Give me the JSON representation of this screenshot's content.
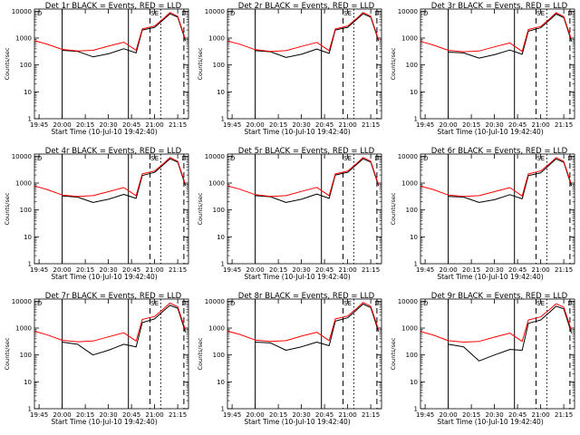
{
  "colors": {
    "events": "#000000",
    "lld": "#ff0000",
    "axes": "#000000",
    "background": "#ffffff"
  },
  "common": {
    "xlabel": "Start Time (10-Jul-10 19:42:40)",
    "ylabel": "Counts/sec",
    "xticks": [
      "19:45",
      "20:00",
      "20:15",
      "20:30",
      "20:45",
      "21:00",
      "21:15"
    ],
    "yticks": [
      "1",
      "10",
      "100",
      "1000",
      "10000"
    ],
    "flags": [
      "D",
      "SE",
      "D"
    ]
  },
  "chart_data": [
    {
      "type": "line",
      "title": "Det 1r BLACK = Events, RED = LLD",
      "xlabel": "Start Time (10-Jul-10 19:42:40)",
      "ylabel": "Counts/sec",
      "yscale": "log",
      "ylim": [
        1,
        12000
      ],
      "xlim": [
        "19:42",
        "21:22"
      ],
      "x": [
        "19:42",
        "19:50",
        "20:00",
        "20:10",
        "20:20",
        "20:30",
        "20:40",
        "20:48",
        "20:52",
        "21:00",
        "21:06",
        "21:10",
        "21:15",
        "21:20"
      ],
      "series": [
        {
          "name": "Events",
          "color": "#000000",
          "values": [
            null,
            null,
            350,
            320,
            200,
            260,
            400,
            280,
            2000,
            2500,
            5000,
            8000,
            6000,
            800
          ]
        },
        {
          "name": "LLD",
          "color": "#ff0000",
          "values": [
            800,
            600,
            380,
            330,
            350,
            500,
            700,
            350,
            2200,
            2800,
            5500,
            9000,
            6500,
            900
          ]
        }
      ],
      "vlines": [
        {
          "x": "20:00",
          "style": "solid"
        },
        {
          "x": "20:43",
          "style": "solid"
        },
        {
          "x": "20:57",
          "style": "dashed"
        },
        {
          "x": "21:04",
          "style": "dotted"
        },
        {
          "x": "21:19",
          "style": "dashed"
        }
      ]
    },
    {
      "type": "line",
      "title": "Det 2r BLACK = Events, RED = LLD",
      "xlabel": "Start Time (10-Jul-10 19:42:40)",
      "ylabel": "Counts/sec",
      "yscale": "log",
      "ylim": [
        1,
        12000
      ],
      "xlim": [
        "19:42",
        "21:22"
      ],
      "x": [
        "19:42",
        "19:50",
        "20:00",
        "20:10",
        "20:20",
        "20:30",
        "20:40",
        "20:48",
        "20:52",
        "21:00",
        "21:06",
        "21:10",
        "21:15",
        "21:20"
      ],
      "series": [
        {
          "name": "Events",
          "color": "#000000",
          "values": [
            null,
            null,
            340,
            310,
            190,
            250,
            390,
            270,
            2000,
            2500,
            5000,
            8000,
            6000,
            800
          ]
        },
        {
          "name": "LLD",
          "color": "#ff0000",
          "values": [
            780,
            590,
            370,
            320,
            340,
            490,
            690,
            340,
            2200,
            2800,
            5500,
            9000,
            6500,
            900
          ]
        }
      ],
      "vlines": [
        {
          "x": "20:00",
          "style": "solid"
        },
        {
          "x": "20:43",
          "style": "solid"
        },
        {
          "x": "20:57",
          "style": "dashed"
        },
        {
          "x": "21:04",
          "style": "dotted"
        },
        {
          "x": "21:19",
          "style": "dashed"
        }
      ]
    },
    {
      "type": "line",
      "title": "Det 3r BLACK = Events, RED = LLD",
      "xlabel": "Start Time (10-Jul-10 19:42:40)",
      "ylabel": "Counts/sec",
      "yscale": "log",
      "ylim": [
        1,
        12000
      ],
      "xlim": [
        "19:42",
        "21:22"
      ],
      "x": [
        "19:42",
        "19:50",
        "20:00",
        "20:10",
        "20:20",
        "20:30",
        "20:40",
        "20:48",
        "20:52",
        "21:00",
        "21:06",
        "21:10",
        "21:15",
        "21:20"
      ],
      "series": [
        {
          "name": "Events",
          "color": "#000000",
          "values": [
            null,
            null,
            300,
            280,
            180,
            240,
            360,
            250,
            1800,
            2400,
            4800,
            7800,
            5800,
            750
          ]
        },
        {
          "name": "LLD",
          "color": "#ff0000",
          "values": [
            750,
            560,
            350,
            310,
            330,
            470,
            660,
            320,
            2100,
            2700,
            5300,
            8800,
            6300,
            880
          ]
        }
      ],
      "vlines": [
        {
          "x": "20:00",
          "style": "solid"
        },
        {
          "x": "20:43",
          "style": "solid"
        },
        {
          "x": "20:57",
          "style": "dashed"
        },
        {
          "x": "21:04",
          "style": "dotted"
        },
        {
          "x": "21:19",
          "style": "dashed"
        }
      ]
    },
    {
      "type": "line",
      "title": "Det 4r BLACK = Events, RED = LLD",
      "xlabel": "Start Time (10-Jul-10 19:42:40)",
      "ylabel": "Counts/sec",
      "yscale": "log",
      "ylim": [
        1,
        12000
      ],
      "xlim": [
        "19:42",
        "21:22"
      ],
      "x": [
        "19:42",
        "19:50",
        "20:00",
        "20:10",
        "20:20",
        "20:30",
        "20:40",
        "20:48",
        "20:52",
        "21:00",
        "21:06",
        "21:10",
        "21:15",
        "21:20"
      ],
      "series": [
        {
          "name": "Events",
          "color": "#000000",
          "values": [
            null,
            null,
            330,
            300,
            190,
            250,
            380,
            270,
            1900,
            2500,
            5000,
            8000,
            6000,
            800
          ]
        },
        {
          "name": "LLD",
          "color": "#ff0000",
          "values": [
            780,
            580,
            360,
            320,
            340,
            480,
            680,
            340,
            2200,
            2800,
            5500,
            9000,
            6500,
            900
          ]
        }
      ],
      "vlines": [
        {
          "x": "20:00",
          "style": "solid"
        },
        {
          "x": "20:43",
          "style": "solid"
        },
        {
          "x": "20:57",
          "style": "dashed"
        },
        {
          "x": "21:04",
          "style": "dotted"
        },
        {
          "x": "21:19",
          "style": "dashed"
        }
      ]
    },
    {
      "type": "line",
      "title": "Det 5r BLACK = Events, RED = LLD",
      "xlabel": "Start Time (10-Jul-10 19:42:40)",
      "ylabel": "Counts/sec",
      "yscale": "log",
      "ylim": [
        1,
        12000
      ],
      "xlim": [
        "19:42",
        "21:22"
      ],
      "x": [
        "19:42",
        "19:50",
        "20:00",
        "20:10",
        "20:20",
        "20:30",
        "20:40",
        "20:48",
        "20:52",
        "21:00",
        "21:06",
        "21:10",
        "21:15",
        "21:20"
      ],
      "series": [
        {
          "name": "Events",
          "color": "#000000",
          "values": [
            null,
            null,
            340,
            310,
            190,
            250,
            390,
            270,
            2000,
            2500,
            5000,
            8000,
            6000,
            800
          ]
        },
        {
          "name": "LLD",
          "color": "#ff0000",
          "values": [
            790,
            590,
            370,
            320,
            340,
            490,
            690,
            340,
            2200,
            2800,
            5500,
            9000,
            6500,
            900
          ]
        }
      ],
      "vlines": [
        {
          "x": "20:00",
          "style": "solid"
        },
        {
          "x": "20:43",
          "style": "solid"
        },
        {
          "x": "20:57",
          "style": "dashed"
        },
        {
          "x": "21:04",
          "style": "dotted"
        },
        {
          "x": "21:19",
          "style": "dashed"
        }
      ]
    },
    {
      "type": "line",
      "title": "Det 6r BLACK = Events, RED = LLD",
      "xlabel": "Start Time (10-Jul-10 19:42:40)",
      "ylabel": "Counts/sec",
      "yscale": "log",
      "ylim": [
        1,
        12000
      ],
      "xlim": [
        "19:42",
        "21:22"
      ],
      "x": [
        "19:42",
        "19:50",
        "20:00",
        "20:10",
        "20:20",
        "20:30",
        "20:40",
        "20:48",
        "20:52",
        "21:00",
        "21:06",
        "21:10",
        "21:15",
        "21:20"
      ],
      "series": [
        {
          "name": "Events",
          "color": "#000000",
          "values": [
            null,
            null,
            320,
            300,
            190,
            240,
            370,
            260,
            1900,
            2400,
            4900,
            7900,
            5900,
            780
          ]
        },
        {
          "name": "LLD",
          "color": "#ff0000",
          "values": [
            770,
            580,
            360,
            320,
            340,
            480,
            680,
            330,
            2200,
            2800,
            5400,
            8900,
            6400,
            890
          ]
        }
      ],
      "vlines": [
        {
          "x": "20:00",
          "style": "solid"
        },
        {
          "x": "20:43",
          "style": "solid"
        },
        {
          "x": "20:57",
          "style": "dashed"
        },
        {
          "x": "21:04",
          "style": "dotted"
        },
        {
          "x": "21:19",
          "style": "dashed"
        }
      ]
    },
    {
      "type": "line",
      "title": "Det 7r BLACK = Events, RED = LLD",
      "xlabel": "Start Time (10-Jul-10 19:42:40)",
      "ylabel": "Counts/sec",
      "yscale": "log",
      "ylim": [
        1,
        12000
      ],
      "xlim": [
        "19:42",
        "21:22"
      ],
      "x": [
        "19:42",
        "19:50",
        "20:00",
        "20:10",
        "20:20",
        "20:30",
        "20:40",
        "20:48",
        "20:52",
        "21:00",
        "21:06",
        "21:10",
        "21:15",
        "21:20"
      ],
      "series": [
        {
          "name": "Events",
          "color": "#000000",
          "values": [
            null,
            null,
            300,
            250,
            100,
            150,
            250,
            200,
            1600,
            2200,
            4500,
            7000,
            5500,
            700
          ]
        },
        {
          "name": "LLD",
          "color": "#ff0000",
          "values": [
            760,
            570,
            350,
            310,
            330,
            470,
            670,
            330,
            2100,
            2700,
            5300,
            8500,
            6200,
            850
          ]
        }
      ],
      "vlines": [
        {
          "x": "20:00",
          "style": "solid"
        },
        {
          "x": "20:43",
          "style": "solid"
        },
        {
          "x": "20:57",
          "style": "dashed"
        },
        {
          "x": "21:04",
          "style": "dotted"
        },
        {
          "x": "21:19",
          "style": "dashed"
        }
      ]
    },
    {
      "type": "line",
      "title": "Det 8r BLACK = Events, RED = LLD",
      "xlabel": "Start Time (10-Jul-10 19:42:40)",
      "ylabel": "Counts/sec",
      "yscale": "log",
      "ylim": [
        1,
        12000
      ],
      "xlim": [
        "19:42",
        "21:22"
      ],
      "x": [
        "19:42",
        "19:50",
        "20:00",
        "20:10",
        "20:20",
        "20:30",
        "20:40",
        "20:48",
        "20:52",
        "21:00",
        "21:06",
        "21:10",
        "21:15",
        "21:20"
      ],
      "series": [
        {
          "name": "Events",
          "color": "#000000",
          "values": [
            null,
            null,
            300,
            280,
            150,
            200,
            300,
            220,
            1800,
            2400,
            4800,
            7800,
            5800,
            750
          ]
        },
        {
          "name": "LLD",
          "color": "#ff0000",
          "values": [
            770,
            580,
            360,
            320,
            340,
            500,
            700,
            340,
            2200,
            2800,
            5500,
            9000,
            6500,
            900
          ]
        }
      ],
      "vlines": [
        {
          "x": "20:00",
          "style": "solid"
        },
        {
          "x": "20:43",
          "style": "solid"
        },
        {
          "x": "20:57",
          "style": "dashed"
        },
        {
          "x": "21:04",
          "style": "dotted"
        },
        {
          "x": "21:19",
          "style": "dashed"
        }
      ]
    },
    {
      "type": "line",
      "title": "Det 9r BLACK = Events, RED = LLD",
      "xlabel": "Start Time (10-Jul-10 19:42:40)",
      "ylabel": "Counts/sec",
      "yscale": "log",
      "ylim": [
        1,
        12000
      ],
      "xlim": [
        "19:42",
        "21:22"
      ],
      "x": [
        "19:42",
        "19:50",
        "20:00",
        "20:10",
        "20:20",
        "20:30",
        "20:40",
        "20:48",
        "20:52",
        "21:00",
        "21:06",
        "21:10",
        "21:15",
        "21:20"
      ],
      "series": [
        {
          "name": "Events",
          "color": "#000000",
          "values": [
            null,
            null,
            250,
            200,
            60,
            100,
            160,
            150,
            1500,
            2000,
            4000,
            6500,
            5200,
            650
          ]
        },
        {
          "name": "LLD",
          "color": "#ff0000",
          "values": [
            740,
            560,
            340,
            300,
            320,
            460,
            650,
            320,
            2000,
            2600,
            5000,
            8000,
            6000,
            820
          ]
        }
      ],
      "vlines": [
        {
          "x": "20:00",
          "style": "solid"
        },
        {
          "x": "20:43",
          "style": "solid"
        },
        {
          "x": "20:57",
          "style": "dashed"
        },
        {
          "x": "21:04",
          "style": "dotted"
        },
        {
          "x": "21:19",
          "style": "dashed"
        }
      ]
    }
  ]
}
